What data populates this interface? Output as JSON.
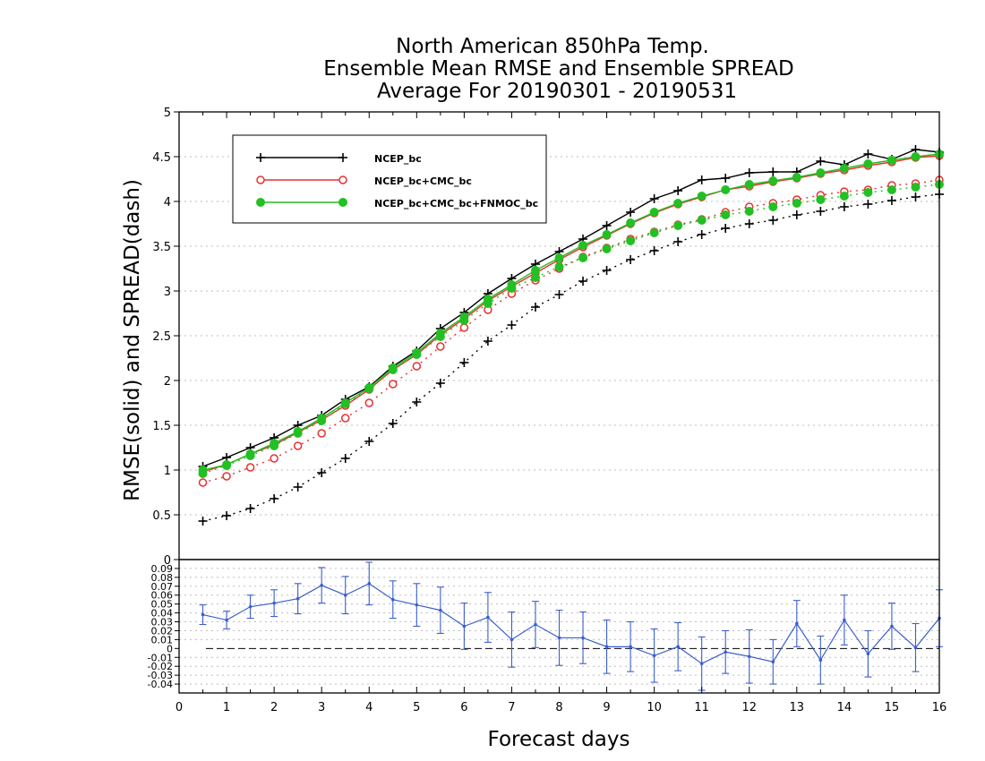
{
  "chart_data": [
    {
      "type": "line",
      "title": [
        "North American 850hPa Temp.",
        "Ensemble Mean RMSE and Ensemble SPREAD",
        "Average For 20190301 - 20190531"
      ],
      "xlabel": "Forecast days",
      "ylabel": "RMSE(solid) and SPREAD(dash)",
      "xlim": [
        0,
        16
      ],
      "ylim": [
        0,
        5
      ],
      "yticks": [
        "0",
        "0.5",
        "1",
        "1.5",
        "2",
        "2.5",
        "3",
        "3.5",
        "4",
        "4.5",
        "5"
      ],
      "xticks": [
        "0",
        "1",
        "2",
        "3",
        "4",
        "5",
        "6",
        "7",
        "8",
        "9",
        "10",
        "11",
        "12",
        "13",
        "14",
        "15",
        "16"
      ],
      "grid": true,
      "legend_position": "top-left",
      "x": [
        0.5,
        1,
        1.5,
        2,
        2.5,
        3,
        3.5,
        4,
        4.5,
        5,
        5.5,
        6,
        6.5,
        7,
        7.5,
        8,
        8.5,
        9,
        9.5,
        10,
        10.5,
        11,
        11.5,
        12,
        12.5,
        13,
        13.5,
        14,
        14.5,
        15,
        15.5,
        16
      ],
      "series": [
        {
          "name": "NCEP_bc",
          "style": "solid",
          "color": "#000000",
          "marker": "plus",
          "values": [
            1.04,
            1.14,
            1.25,
            1.36,
            1.5,
            1.61,
            1.79,
            1.93,
            2.16,
            2.33,
            2.58,
            2.76,
            2.97,
            3.14,
            3.3,
            3.44,
            3.58,
            3.73,
            3.88,
            4.03,
            4.12,
            4.24,
            4.26,
            4.32,
            4.33,
            4.33,
            4.45,
            4.41,
            4.53,
            4.47,
            4.58,
            4.55
          ]
        },
        {
          "name": "NCEP_bc+CMC_bc",
          "style": "solid",
          "color": "#e83030",
          "marker": "circle",
          "values": [
            0.98,
            1.06,
            1.18,
            1.28,
            1.42,
            1.56,
            1.72,
            1.9,
            2.12,
            2.29,
            2.51,
            2.69,
            2.89,
            3.05,
            3.2,
            3.35,
            3.49,
            3.62,
            3.75,
            3.87,
            3.97,
            4.05,
            4.13,
            4.17,
            4.22,
            4.26,
            4.31,
            4.35,
            4.4,
            4.44,
            4.49,
            4.51
          ]
        },
        {
          "name": "NCEP_bc+CMC_bc+FNMOC_bc",
          "style": "solid",
          "color": "#22c022",
          "marker": "dot",
          "values": [
            1.0,
            1.06,
            1.18,
            1.3,
            1.43,
            1.58,
            1.75,
            1.92,
            2.14,
            2.31,
            2.53,
            2.71,
            2.91,
            3.07,
            3.23,
            3.37,
            3.51,
            3.63,
            3.76,
            3.88,
            3.98,
            4.06,
            4.13,
            4.19,
            4.23,
            4.27,
            4.32,
            4.37,
            4.42,
            4.46,
            4.5,
            4.53
          ]
        },
        {
          "name": "NCEP_bc",
          "style": "dash",
          "color": "#000000",
          "marker": "plus",
          "values": [
            0.43,
            0.49,
            0.57,
            0.68,
            0.81,
            0.97,
            1.13,
            1.32,
            1.52,
            1.76,
            1.97,
            2.2,
            2.44,
            2.62,
            2.82,
            2.96,
            3.11,
            3.23,
            3.35,
            3.45,
            3.55,
            3.63,
            3.7,
            3.75,
            3.79,
            3.85,
            3.89,
            3.94,
            3.97,
            4.01,
            4.05,
            4.08
          ]
        },
        {
          "name": "NCEP_bc+CMC_bc",
          "style": "dash",
          "color": "#e83030",
          "marker": "circle",
          "values": [
            0.86,
            0.93,
            1.03,
            1.13,
            1.27,
            1.41,
            1.58,
            1.75,
            1.96,
            2.16,
            2.38,
            2.59,
            2.79,
            2.97,
            3.12,
            3.25,
            3.38,
            3.48,
            3.58,
            3.66,
            3.74,
            3.8,
            3.88,
            3.94,
            3.98,
            4.02,
            4.07,
            4.11,
            4.13,
            4.18,
            4.2,
            4.24
          ]
        },
        {
          "name": "NCEP_bc+CMC_bc+FNMOC_bc",
          "style": "dash",
          "color": "#22c022",
          "marker": "dot",
          "values": [
            0.96,
            1.05,
            1.16,
            1.27,
            1.41,
            1.55,
            1.74,
            1.91,
            2.12,
            2.29,
            2.49,
            2.67,
            2.86,
            3.03,
            3.15,
            3.27,
            3.37,
            3.47,
            3.56,
            3.65,
            3.73,
            3.79,
            3.85,
            3.89,
            3.94,
            3.98,
            4.02,
            4.06,
            4.1,
            4.13,
            4.16,
            4.19
          ]
        }
      ]
    },
    {
      "type": "line",
      "xlim": [
        0,
        16
      ],
      "ylim": [
        -0.05,
        0.1
      ],
      "yticks": [
        "0.09",
        "0.08",
        "0.07",
        "0.06",
        "0.05",
        "0.04",
        "0.03",
        "0.02",
        "0.01",
        "0",
        "-0.01",
        "-0.02",
        "-0.03",
        "-0.04"
      ],
      "yticks_values": [
        0.09,
        0.08,
        0.07,
        0.06,
        0.05,
        0.04,
        0.03,
        0.02,
        0.01,
        0,
        -0.01,
        -0.02,
        -0.03,
        -0.04
      ],
      "zero_line": true,
      "grid": true,
      "x": [
        0.5,
        1,
        1.5,
        2,
        2.5,
        3,
        3.5,
        4,
        4.5,
        5,
        5.5,
        6,
        6.5,
        7,
        7.5,
        8,
        8.5,
        9,
        9.5,
        10,
        10.5,
        11,
        11.5,
        12,
        12.5,
        13,
        13.5,
        14,
        14.5,
        15,
        15.5,
        16
      ],
      "series": [
        {
          "name": "",
          "color": "#3a5fcd",
          "error_bars": true,
          "values": [
            0.038,
            0.032,
            0.047,
            0.051,
            0.056,
            0.071,
            0.06,
            0.073,
            0.055,
            0.049,
            0.043,
            0.025,
            0.035,
            0.01,
            0.027,
            0.012,
            0.012,
            0.002,
            0.002,
            -0.008,
            0.002,
            -0.017,
            -0.004,
            -0.009,
            -0.015,
            0.028,
            -0.013,
            0.032,
            -0.006,
            0.025,
            0.001,
            0.034
          ],
          "errors": [
            0.011,
            0.01,
            0.013,
            0.015,
            0.017,
            0.02,
            0.021,
            0.024,
            0.021,
            0.024,
            0.026,
            0.026,
            0.028,
            0.031,
            0.026,
            0.031,
            0.029,
            0.03,
            0.028,
            0.03,
            0.027,
            0.03,
            0.024,
            0.03,
            0.025,
            0.026,
            0.027,
            0.028,
            0.026,
            0.026,
            0.027,
            0.032
          ]
        }
      ]
    }
  ],
  "legend": {
    "items": [
      {
        "label": "NCEP_bc",
        "color": "#000000",
        "marker": "plus"
      },
      {
        "label": "NCEP_bc+CMC_bc",
        "color": "#e83030",
        "marker": "circle"
      },
      {
        "label": "NCEP_bc+CMC_bc+FNMOC_bc",
        "color": "#22c022",
        "marker": "dot"
      }
    ]
  }
}
